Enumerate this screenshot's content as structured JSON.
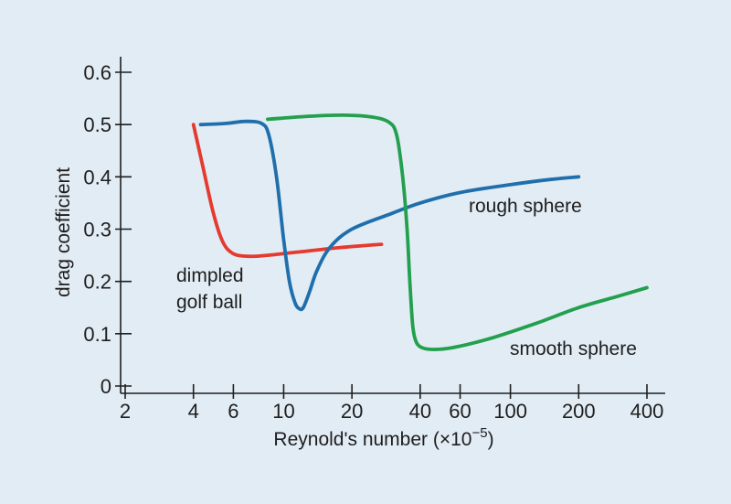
{
  "chart_data": {
    "type": "line",
    "title": "",
    "xlabel": "Reynold's number (×10",
    "xlabel_exp": "−5",
    "xlabel_close": ")",
    "ylabel": "drag coefficient",
    "x_scale": "log",
    "xlim": [
      2,
      400
    ],
    "ylim": [
      0,
      0.6
    ],
    "x_ticks": [
      2,
      4,
      6,
      10,
      20,
      40,
      60,
      100,
      200,
      400
    ],
    "x_tick_labels": [
      "2",
      "4",
      "6",
      "10",
      "20",
      "40",
      "60",
      "100",
      "200",
      "400"
    ],
    "y_ticks": [
      0,
      0.1,
      0.2,
      0.3,
      0.4,
      0.5,
      0.6
    ],
    "y_tick_labels": [
      "0",
      "0.1",
      "0.2",
      "0.3",
      "0.4",
      "0.5",
      "0.6"
    ],
    "grid": false,
    "legend": "none",
    "series": [
      {
        "name": "dimpled golf ball",
        "color": "#e53a2f",
        "x": [
          4,
          4.4,
          4.9,
          5.4,
          6,
          7,
          8.5,
          12,
          18,
          27
        ],
        "y": [
          0.5,
          0.42,
          0.33,
          0.275,
          0.253,
          0.248,
          0.25,
          0.257,
          0.265,
          0.271
        ]
      },
      {
        "name": "rough sphere",
        "color": "#1f6fac",
        "x": [
          4.3,
          5.5,
          6.8,
          8,
          8.6,
          9.3,
          10,
          10.6,
          11.2,
          11.7,
          12.2,
          13,
          14,
          16,
          20,
          30,
          40,
          60,
          100,
          150,
          200
        ],
        "y": [
          0.5,
          0.502,
          0.506,
          0.502,
          0.48,
          0.4,
          0.28,
          0.2,
          0.16,
          0.148,
          0.15,
          0.18,
          0.22,
          0.265,
          0.3,
          0.33,
          0.35,
          0.37,
          0.385,
          0.395,
          0.4
        ]
      },
      {
        "name": "smooth sphere",
        "color": "#22a04e",
        "x": [
          8.5,
          12,
          18,
          24,
          29,
          31.5,
          33.5,
          35,
          36,
          37,
          38,
          40,
          45,
          55,
          80,
          130,
          200,
          300,
          400
        ],
        "y": [
          0.51,
          0.515,
          0.518,
          0.515,
          0.505,
          0.48,
          0.4,
          0.3,
          0.2,
          0.12,
          0.09,
          0.075,
          0.07,
          0.073,
          0.09,
          0.12,
          0.15,
          0.172,
          0.188
        ]
      }
    ],
    "annotations": [
      {
        "lines": [
          "dimpled",
          "golf ball"
        ],
        "series": "dimpled golf ball"
      },
      {
        "lines": [
          "rough sphere"
        ],
        "series": "rough sphere"
      },
      {
        "lines": [
          "smooth sphere"
        ],
        "series": "smooth sphere"
      }
    ]
  }
}
